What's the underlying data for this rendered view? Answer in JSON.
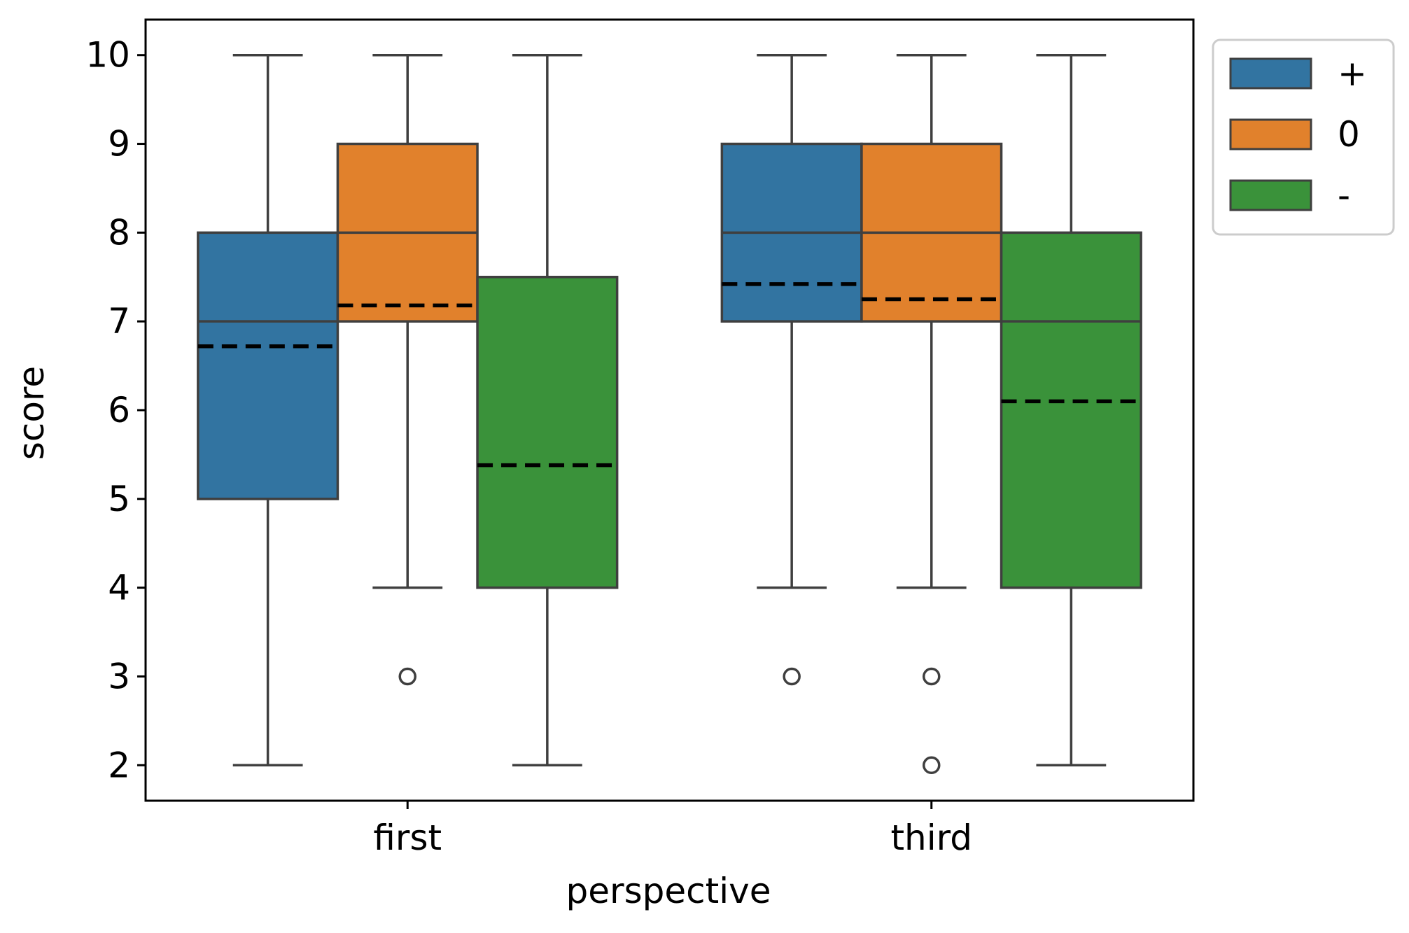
{
  "chart_data": {
    "type": "box",
    "xlabel": "perspective",
    "ylabel": "score",
    "categories": [
      "first",
      "third"
    ],
    "ylim": [
      1.6,
      10.4
    ],
    "yticks": [
      2,
      3,
      4,
      5,
      6,
      7,
      8,
      9,
      10
    ],
    "grid": false,
    "legend": {
      "placement": "outside-top-right",
      "entries": [
        {
          "label": "+",
          "color": "#3274a1"
        },
        {
          "label": "0",
          "color": "#e1812c"
        },
        {
          "label": "-",
          "color": "#3a923a"
        }
      ]
    },
    "series": [
      {
        "name": "+",
        "color": "#3274a1",
        "boxes": [
          {
            "category": "first",
            "whislo": 2,
            "q1": 5,
            "median": 7,
            "q3": 8,
            "whishi": 10,
            "mean": 6.72,
            "fliers": []
          },
          {
            "category": "third",
            "whislo": 4,
            "q1": 7,
            "median": 8,
            "q3": 9,
            "whishi": 10,
            "mean": 7.42,
            "fliers": [
              3
            ]
          }
        ]
      },
      {
        "name": "0",
        "color": "#e1812c",
        "boxes": [
          {
            "category": "first",
            "whislo": 4,
            "q1": 7,
            "median": 8,
            "q3": 9,
            "whishi": 10,
            "mean": 7.18,
            "fliers": [
              3
            ]
          },
          {
            "category": "third",
            "whislo": 4,
            "q1": 7,
            "median": 8,
            "q3": 9,
            "whishi": 10,
            "mean": 7.25,
            "fliers": [
              3,
              2
            ]
          }
        ]
      },
      {
        "name": "-",
        "color": "#3a923a",
        "boxes": [
          {
            "category": "first",
            "whislo": 2,
            "q1": 4,
            "median": 7.5,
            "q3": 7.5,
            "whishi": 10,
            "mean": 5.38,
            "fliers": []
          },
          {
            "category": "third",
            "whislo": 2,
            "q1": 4,
            "median": 7,
            "q3": 8,
            "whishi": 10,
            "mean": 6.1,
            "fliers": []
          }
        ]
      }
    ],
    "mean_line_style": "dashed-black",
    "outline_color": "#3f3f3f"
  }
}
